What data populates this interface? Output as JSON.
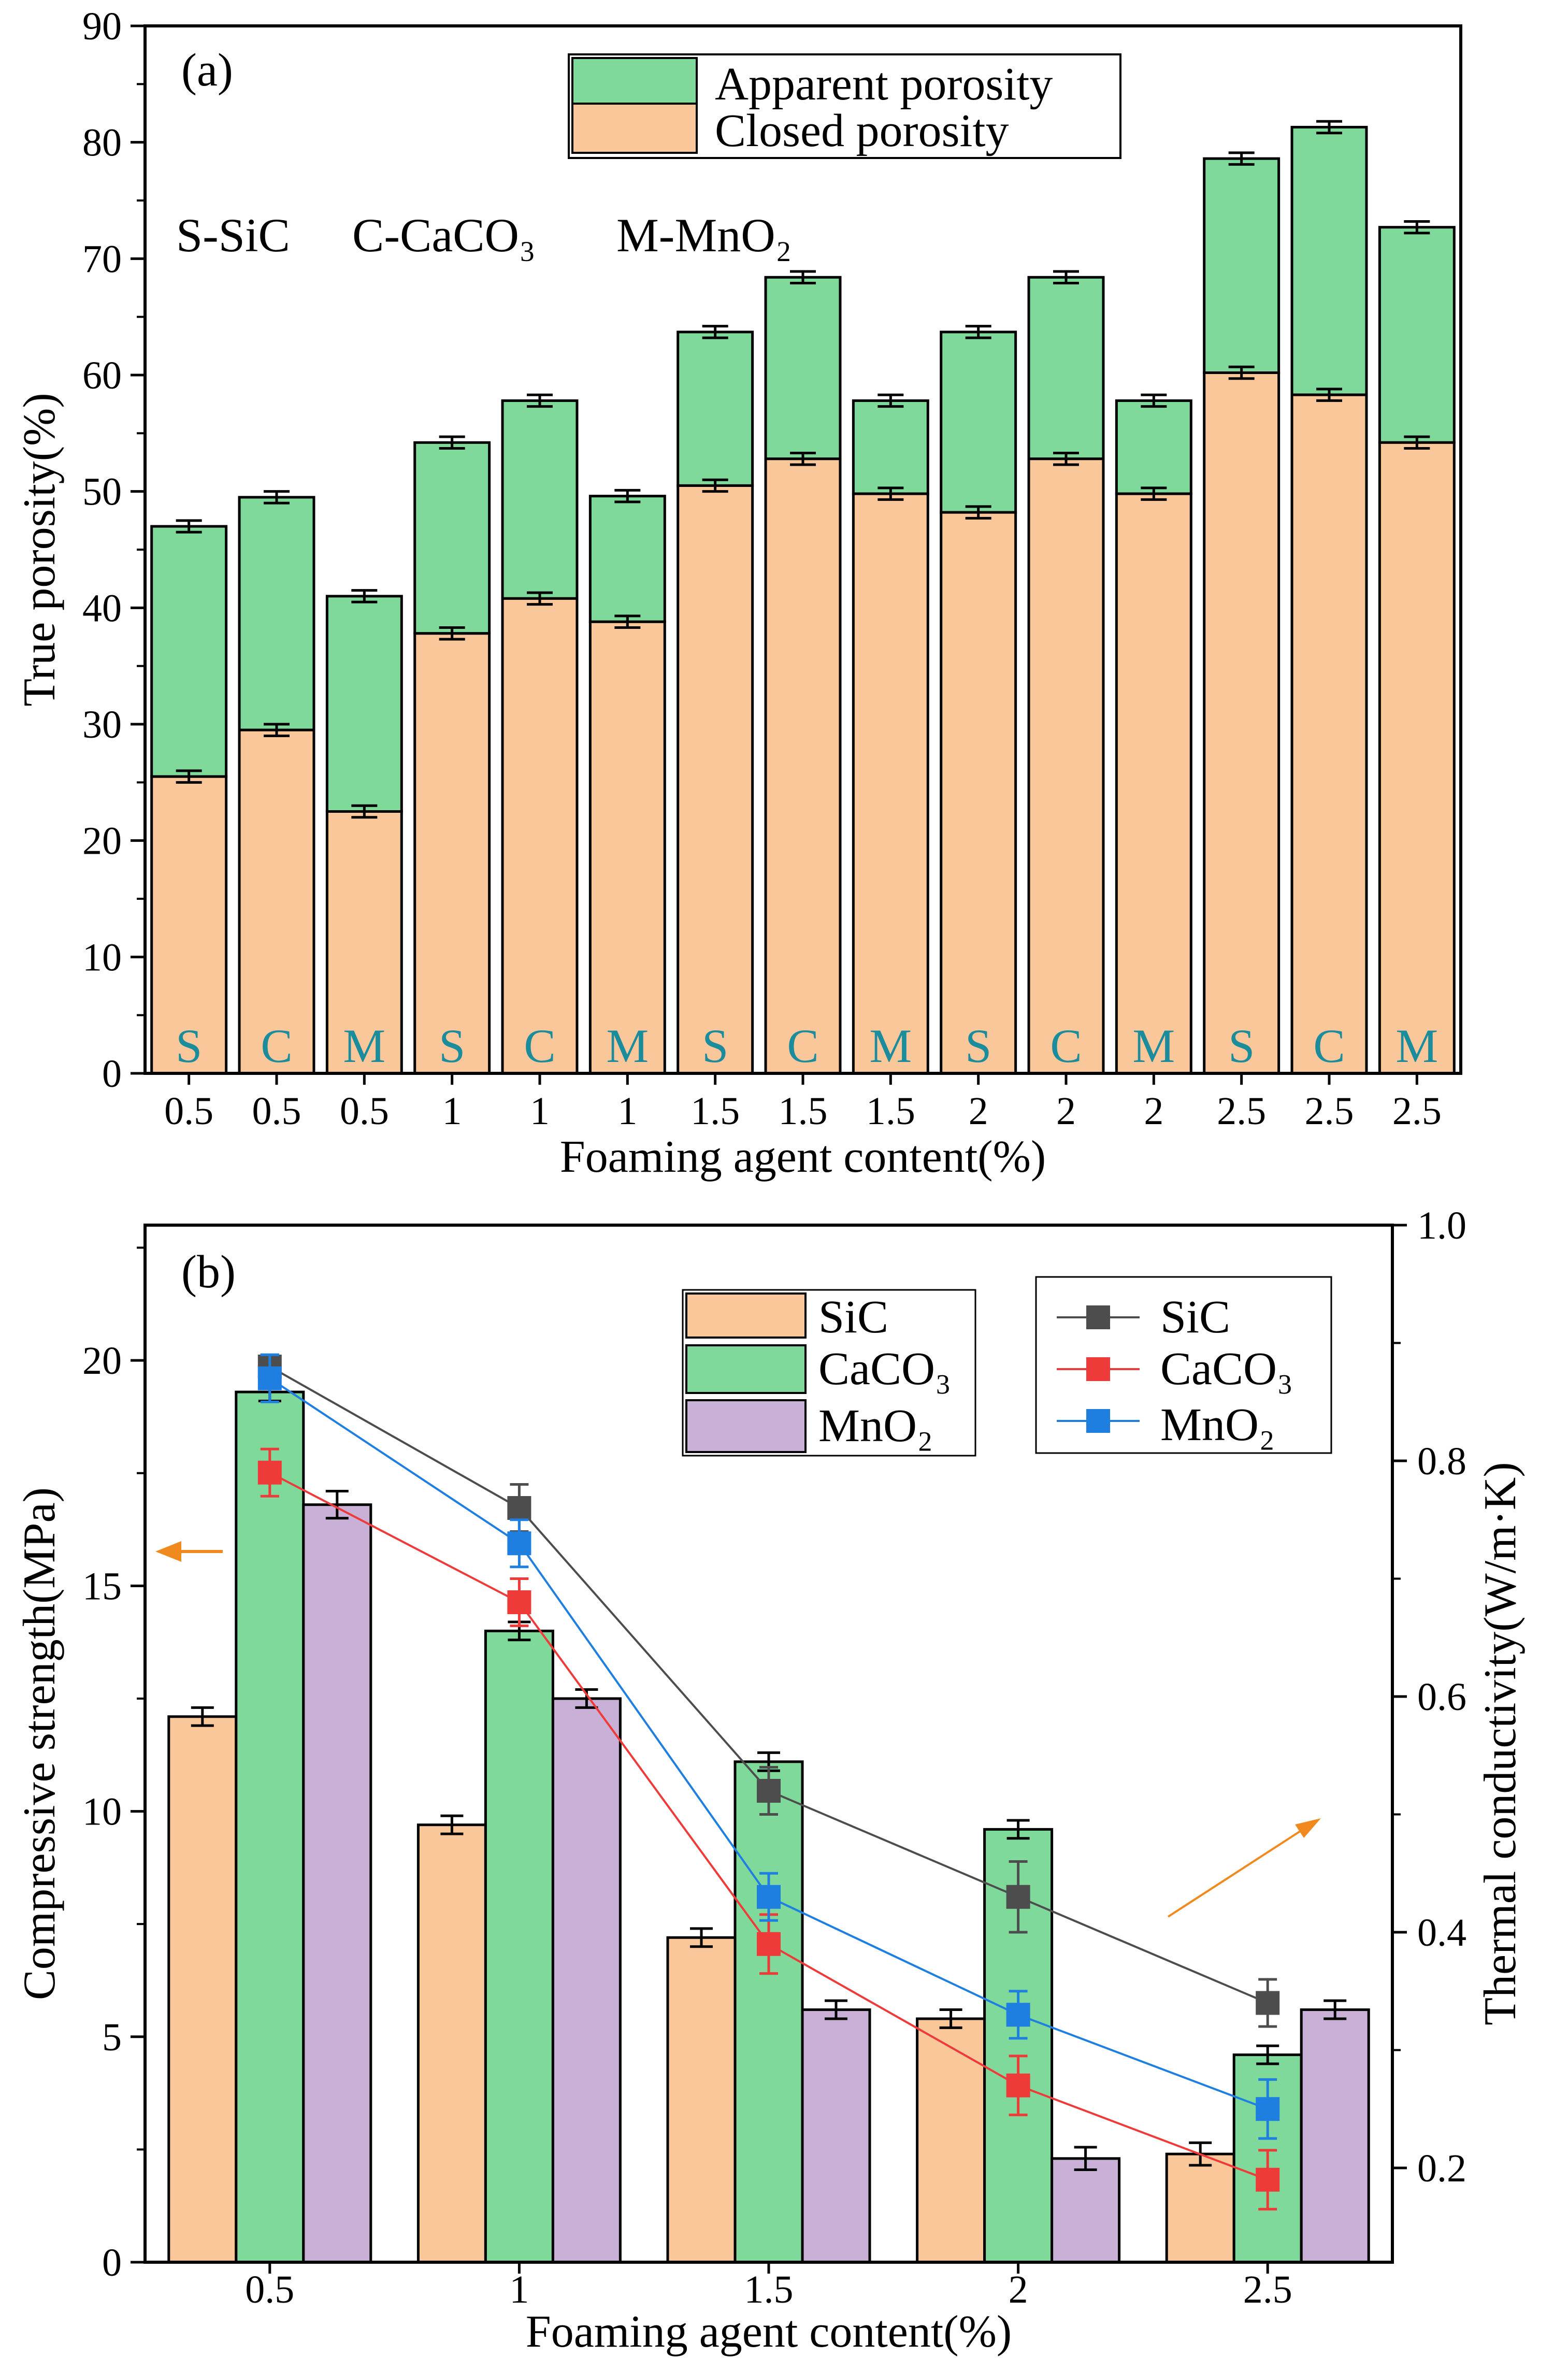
{
  "colors": {
    "closed": "#F9C79A",
    "apparent": "#7FD99A",
    "sic_bar": "#F9C79A",
    "caco3_bar": "#7FD99A",
    "mno2_bar": "#C9B0D6",
    "sic_line": "#4D4D4D",
    "caco3_line": "#EF3A3A",
    "mno2_line": "#1E7FE0",
    "letter": "#1A8C9C",
    "arrow": "#F08A1E"
  },
  "chart_data": [
    {
      "type": "bar",
      "stacked": true,
      "panel_label": "(a)",
      "xlabel": "Foaming agent content(%)",
      "ylabel": "True porosity(%)",
      "ylim": [
        0,
        90
      ],
      "yticks": [
        "0",
        "10",
        "20",
        "30",
        "40",
        "50",
        "60",
        "70",
        "80",
        "90"
      ],
      "categories": [
        "0.5",
        "0.5",
        "0.5",
        "1",
        "1",
        "1",
        "1.5",
        "1.5",
        "1.5",
        "2",
        "2",
        "2",
        "2.5",
        "2.5",
        "2.5"
      ],
      "bar_letters": [
        "S",
        "C",
        "M",
        "S",
        "C",
        "M",
        "S",
        "C",
        "M",
        "S",
        "C",
        "M",
        "S",
        "C",
        "M"
      ],
      "annotation_items": [
        "S-SiC",
        "C-CaCO₃",
        "M-MnO₂"
      ],
      "legend": {
        "position": "top-center",
        "entries": [
          "Apparent porosity",
          "Closed porosity"
        ]
      },
      "series": [
        {
          "name": "Closed porosity",
          "values": [
            25.5,
            29.5,
            22.5,
            37.8,
            40.8,
            38.8,
            50.5,
            52.8,
            49.8,
            48.2,
            52.8,
            49.8,
            60.2,
            58.3,
            54.2
          ]
        },
        {
          "name": "Apparent porosity",
          "total_values": [
            47.0,
            49.5,
            41.0,
            54.2,
            57.8,
            49.6,
            63.7,
            68.4,
            57.8,
            63.7,
            68.4,
            57.8,
            78.6,
            81.3,
            72.7
          ]
        }
      ]
    },
    {
      "type": "bar",
      "panel_label": "(b)",
      "xlabel": "Foaming agent content(%)",
      "ylabel": "Compressive strength(MPa)",
      "y2label": "Thermal conductivity(W/m·K)",
      "ylim": [
        0,
        23
      ],
      "yticks": [
        "0",
        "5",
        "10",
        "15",
        "20"
      ],
      "y2lim": [
        0.12,
        1.0
      ],
      "y2ticks": [
        "0.2",
        "0.4",
        "0.6",
        "0.8",
        "1.0"
      ],
      "categories": [
        "0.5",
        "1",
        "1.5",
        "2",
        "2.5"
      ],
      "bar_legend": [
        "SiC",
        "CaCO₃",
        "MnO₂"
      ],
      "line_legend": [
        "SiC",
        "CaCO₃",
        "MnO₂"
      ],
      "bar_series": [
        {
          "name": "SiC",
          "values": [
            12.1,
            9.7,
            7.2,
            5.4,
            2.4
          ],
          "errors": [
            0.2,
            0.2,
            0.2,
            0.2,
            0.25
          ]
        },
        {
          "name": "CaCO₃",
          "values": [
            19.3,
            14.0,
            11.1,
            9.6,
            4.6
          ],
          "errors": [
            0.2,
            0.2,
            0.2,
            0.2,
            0.2
          ]
        },
        {
          "name": "MnO₂",
          "values": [
            16.8,
            12.5,
            5.6,
            2.3,
            5.6
          ],
          "errors": [
            0.3,
            0.2,
            0.2,
            0.25,
            0.2
          ]
        }
      ],
      "line_series": [
        {
          "name": "SiC",
          "values": [
            0.88,
            0.76,
            0.52,
            0.43,
            0.34
          ],
          "errors": [
            0.01,
            0.02,
            0.02,
            0.03,
            0.02
          ]
        },
        {
          "name": "CaCO₃",
          "values": [
            0.79,
            0.68,
            0.39,
            0.27,
            0.19
          ],
          "errors": [
            0.02,
            0.02,
            0.025,
            0.025,
            0.025
          ]
        },
        {
          "name": "MnO₂",
          "values": [
            0.87,
            0.73,
            0.43,
            0.33,
            0.25
          ],
          "errors": [
            0.02,
            0.02,
            0.02,
            0.02,
            0.025
          ]
        }
      ]
    }
  ]
}
